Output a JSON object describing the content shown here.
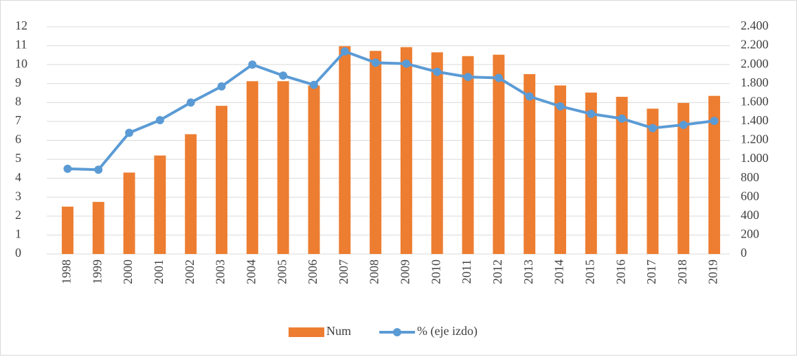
{
  "chart_data": {
    "type": "bar-line",
    "categories": [
      "1998",
      "1999",
      "2000",
      "2001",
      "2002",
      "2003",
      "2004",
      "2005",
      "2006",
      "2007",
      "2008",
      "2009",
      "2010",
      "2011",
      "2012",
      "2013",
      "2014",
      "2015",
      "2016",
      "2017",
      "2018",
      "2019"
    ],
    "series": [
      {
        "name": "Num",
        "type": "bar",
        "axis": "y2",
        "color": "#ed7d31",
        "values": [
          500,
          550,
          860,
          1040,
          1265,
          1565,
          1825,
          1825,
          1780,
          2195,
          2145,
          2185,
          2130,
          2090,
          2105,
          1900,
          1780,
          1705,
          1660,
          1535,
          1595,
          1670
        ]
      },
      {
        "name": "% (eje izdo)",
        "type": "line",
        "axis": "y",
        "color": "#5b9bd5",
        "values": [
          4.5,
          4.45,
          6.4,
          7.07,
          8.0,
          8.85,
          10.0,
          9.42,
          8.93,
          10.7,
          10.1,
          10.05,
          9.62,
          9.35,
          9.3,
          8.32,
          7.8,
          7.4,
          7.15,
          6.65,
          6.82,
          7.03
        ]
      }
    ],
    "ylim": [
      0,
      12
    ],
    "yticks": [
      0,
      1,
      2,
      3,
      4,
      5,
      6,
      7,
      8,
      9,
      10,
      11,
      12
    ],
    "y2lim": [
      0,
      2400
    ],
    "y2ticks": [
      0,
      200,
      400,
      600,
      800,
      {
        "value": 1000,
        "label": "1.000"
      },
      {
        "value": 1200,
        "label": "1.200"
      },
      {
        "value": 1400,
        "label": "1.400"
      },
      {
        "value": 1600,
        "label": "1.600"
      },
      {
        "value": 1800,
        "label": "1.800"
      },
      {
        "value": 2000,
        "label": "2.000"
      },
      {
        "value": 2200,
        "label": "2.200"
      },
      {
        "value": 2400,
        "label": "2.400"
      }
    ],
    "grid": true,
    "legend": "bottom"
  }
}
